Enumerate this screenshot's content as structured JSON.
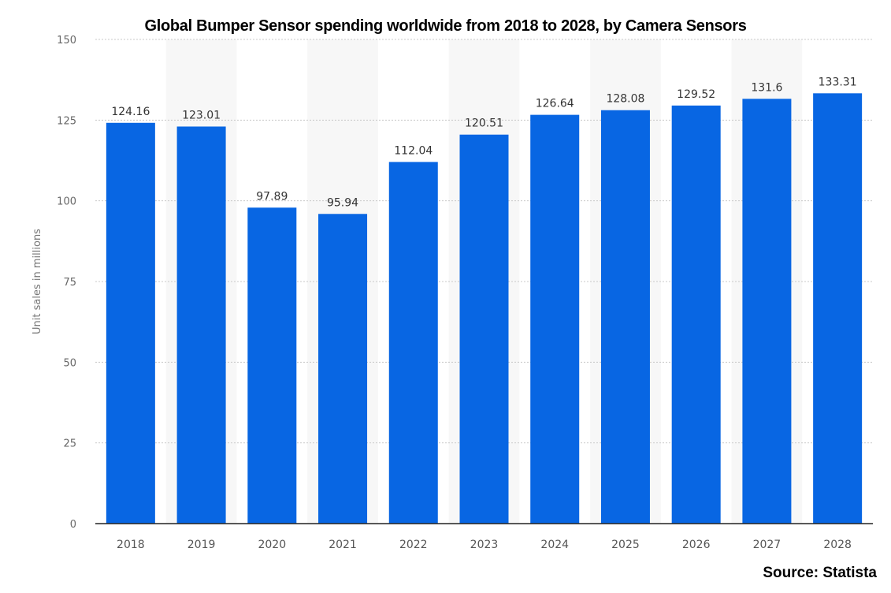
{
  "chart_data": {
    "type": "bar",
    "title": "Global Bumper Sensor spending worldwide from 2018 to 2028, by Camera Sensors",
    "xlabel": "",
    "ylabel": "Unit sales in millions",
    "ylim": [
      0,
      150
    ],
    "yticks": [
      0,
      25,
      50,
      75,
      100,
      125,
      150
    ],
    "grid": true,
    "categories": [
      "2018",
      "2019",
      "2020",
      "2021",
      "2022",
      "2023",
      "2024",
      "2025",
      "2026",
      "2027",
      "2028"
    ],
    "values": [
      124.16,
      123.01,
      97.89,
      95.94,
      112.04,
      120.51,
      126.64,
      128.08,
      129.52,
      131.6,
      133.31
    ],
    "bar_color": "#0866e3",
    "source": "Source: Statista"
  }
}
